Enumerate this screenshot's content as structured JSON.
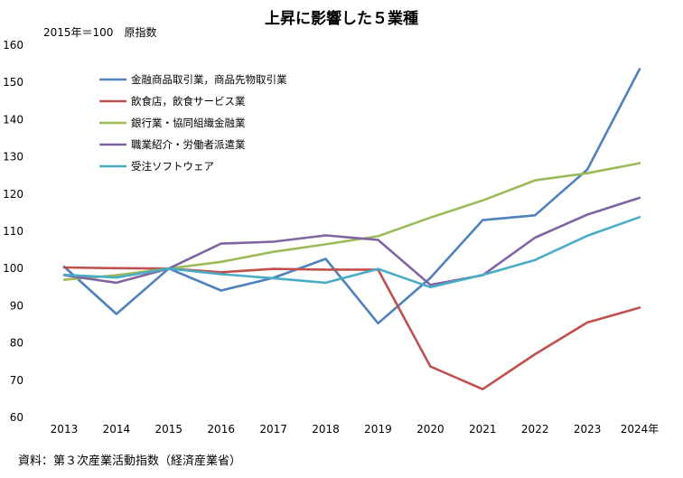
{
  "chart_data": {
    "type": "line",
    "title": "上昇に影響した５業種",
    "index_note": "2015年＝100　原指数",
    "source": "資料：第３次産業活動指数（経済産業省）",
    "x_labels": [
      "2013",
      "2014",
      "2015",
      "2016",
      "2017",
      "2018",
      "2019",
      "2020",
      "2021",
      "2022",
      "2023",
      "2024年"
    ],
    "ylim": [
      60,
      160
    ],
    "y_ticks": [
      60,
      70,
      80,
      90,
      100,
      110,
      120,
      130,
      140,
      150,
      160
    ],
    "grid": false,
    "legend_position": "top-left",
    "series": [
      {
        "name": "金融商品取引業，商品先物取引業",
        "color": "#4f81bd",
        "values": [
          100.5,
          87.8,
          100,
          94.1,
          97.5,
          102.6,
          85.3,
          97.5,
          113,
          114.3,
          126.6,
          153.6
        ]
      },
      {
        "name": "飲食店，飲食サービス業",
        "color": "#c0504d",
        "values": [
          100.3,
          100.1,
          100,
          99,
          99.9,
          99.7,
          99.7,
          73.7,
          67.6,
          77,
          85.5,
          89.5
        ]
      },
      {
        "name": "銀行業・協同組織金融業",
        "color": "#9bbb59",
        "values": [
          97,
          98.2,
          100,
          101.8,
          104.5,
          106.5,
          108.7,
          113.7,
          118.3,
          123.7,
          125.6,
          128.3
        ]
      },
      {
        "name": "職業紹介・労働者派遣業",
        "color": "#8064a2",
        "values": [
          98.2,
          96.2,
          100,
          106.7,
          107.2,
          108.9,
          107.7,
          95.6,
          98.2,
          108.3,
          114.5,
          119
        ]
      },
      {
        "name": "受注ソフトウェア",
        "color": "#4bacc6",
        "values": [
          98.3,
          97.6,
          100,
          98.5,
          97.4,
          96.2,
          99.9,
          95,
          98.3,
          102.3,
          108.8,
          113.8
        ]
      }
    ]
  }
}
